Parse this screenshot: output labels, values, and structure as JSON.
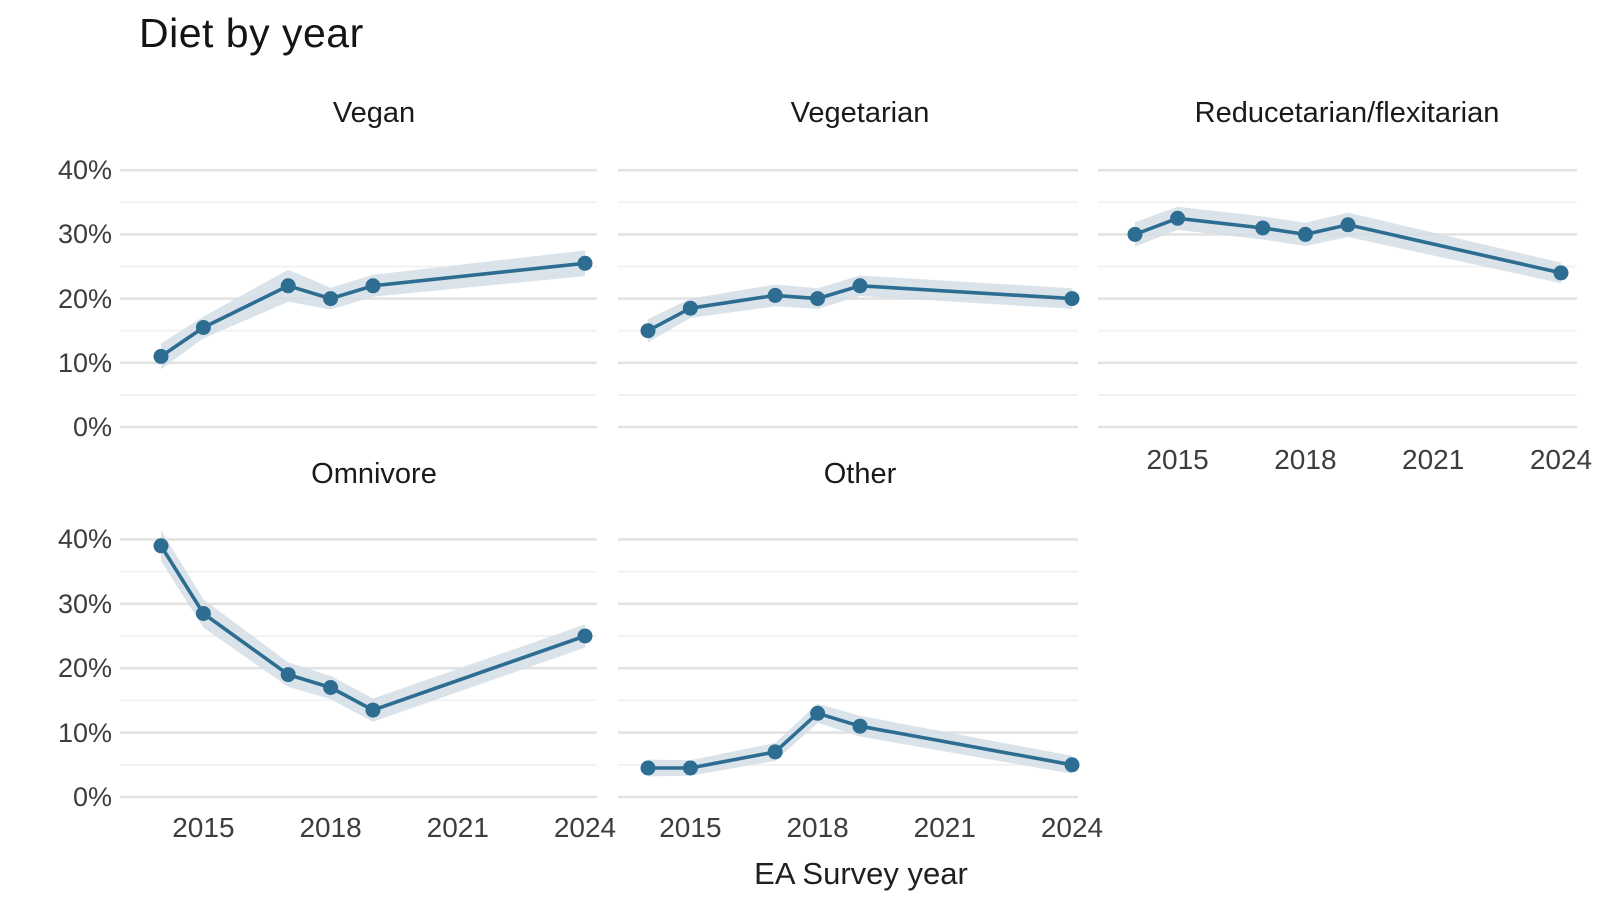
{
  "title": "Diet by year",
  "x_axis_title": "EA Survey year",
  "chart_data": {
    "type": "line",
    "title": "Diet by year",
    "xlabel": "EA Survey year",
    "ylabel": "",
    "x": [
      2014,
      2015,
      2017,
      2018,
      2019,
      2024
    ],
    "x_ticks": [
      "2015",
      "2018",
      "2021",
      "2024"
    ],
    "x_tick_values": [
      2015,
      2018,
      2021,
      2024
    ],
    "y_ticks": [
      "40%",
      "30%",
      "20%",
      "10%",
      "0%"
    ],
    "y_tick_values": [
      40,
      30,
      20,
      10,
      0
    ],
    "ylim": [
      0,
      42
    ],
    "grid": "horizontal, major every 10%, minor every 5%",
    "legend": "none (faceted small multiples, 2 rows x 3 cols)",
    "marker": "filled circle on each observation with confidence ribbon",
    "facets": [
      {
        "name": "Vegan",
        "values": [
          11,
          15.5,
          22,
          20,
          22,
          25.5
        ],
        "lower": [
          9,
          13.8,
          19.5,
          18.3,
          20.3,
          23.5
        ],
        "upper": [
          13,
          17.2,
          24.5,
          21.7,
          23.7,
          27.5
        ]
      },
      {
        "name": "Vegetarian",
        "values": [
          15,
          18.5,
          20.5,
          20,
          22,
          20
        ],
        "lower": [
          13.2,
          17,
          18.8,
          18.4,
          20.4,
          18.4
        ],
        "upper": [
          16.8,
          20,
          22.2,
          21.6,
          23.6,
          21.6
        ]
      },
      {
        "name": "Reducetarian/flexitarian",
        "values": [
          30,
          32.5,
          31,
          30,
          31.5,
          24
        ],
        "lower": [
          28.1,
          30.7,
          29.2,
          28.2,
          29.6,
          22.4
        ],
        "upper": [
          31.9,
          34.3,
          32.8,
          31.8,
          33.4,
          25.6
        ]
      },
      {
        "name": "Omnivore",
        "values": [
          39,
          28.5,
          19,
          17,
          13.5,
          25
        ],
        "lower": [
          36.6,
          26.3,
          17.1,
          15.2,
          11.7,
          23.2
        ],
        "upper": [
          41.4,
          30.7,
          20.9,
          18.8,
          15.3,
          26.8
        ]
      },
      {
        "name": "Other",
        "values": [
          4.5,
          4.5,
          7,
          13,
          11,
          5
        ],
        "lower": [
          3.2,
          3.3,
          5.6,
          11.5,
          9.4,
          3.6
        ],
        "upper": [
          5.8,
          5.7,
          8.4,
          14.5,
          12.6,
          6.4
        ]
      }
    ],
    "colors": {
      "line": "#2e6d92",
      "point": "#2e6d92",
      "ribbon": "#d3dee6",
      "grid_major": "#e3e3e3",
      "grid_minor": "#f1f1f1",
      "tick_text": "#3d3d3d",
      "title_text": "#141414"
    }
  }
}
